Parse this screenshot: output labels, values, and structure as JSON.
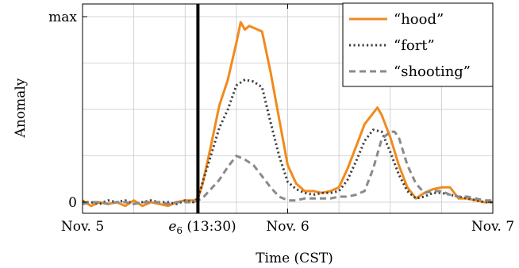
{
  "chart_data": {
    "type": "line",
    "xlabel": "Time (CST)",
    "ylabel": "Anomaly",
    "xlim": [
      0,
      48
    ],
    "ylim": [
      0,
      1
    ],
    "y_tick_labels": [
      "0",
      "max"
    ],
    "x_ticks": [
      {
        "x": 0,
        "label": "Nov. 5"
      },
      {
        "x": 24,
        "label": "Nov. 6"
      },
      {
        "x": 48,
        "label": "Nov. 7"
      }
    ],
    "event_marker": {
      "x": 13.5,
      "label_symbol": "e",
      "label_subscript": "6",
      "label_suffix": " (13:30)"
    },
    "grid": true,
    "legend_position": "top-right",
    "series": [
      {
        "name": "“hood”",
        "color": "#f28a1c",
        "style": "solid",
        "points": [
          [
            0,
            0.01
          ],
          [
            1,
            -0.02
          ],
          [
            2,
            0.0
          ],
          [
            3,
            -0.01
          ],
          [
            4,
            0.0
          ],
          [
            5,
            -0.02
          ],
          [
            6,
            0.01
          ],
          [
            7,
            -0.02
          ],
          [
            8,
            0.0
          ],
          [
            9,
            -0.01
          ],
          [
            10,
            -0.02
          ],
          [
            11,
            0.0
          ],
          [
            12,
            0.01
          ],
          [
            13,
            0.01
          ],
          [
            13.5,
            0.02
          ],
          [
            14,
            0.09
          ],
          [
            15,
            0.3
          ],
          [
            16,
            0.52
          ],
          [
            17,
            0.66
          ],
          [
            18,
            0.86
          ],
          [
            18.5,
            0.97
          ],
          [
            19,
            0.93
          ],
          [
            19.5,
            0.95
          ],
          [
            20,
            0.94
          ],
          [
            21,
            0.92
          ],
          [
            22,
            0.7
          ],
          [
            23,
            0.45
          ],
          [
            24,
            0.2
          ],
          [
            25,
            0.1
          ],
          [
            26,
            0.06
          ],
          [
            27,
            0.06
          ],
          [
            28,
            0.05
          ],
          [
            29,
            0.06
          ],
          [
            30,
            0.08
          ],
          [
            31,
            0.18
          ],
          [
            32,
            0.3
          ],
          [
            33,
            0.42
          ],
          [
            34,
            0.48
          ],
          [
            34.5,
            0.51
          ],
          [
            35,
            0.47
          ],
          [
            36,
            0.35
          ],
          [
            37,
            0.2
          ],
          [
            38,
            0.08
          ],
          [
            39,
            0.02
          ],
          [
            40,
            0.05
          ],
          [
            41,
            0.07
          ],
          [
            42,
            0.08
          ],
          [
            43,
            0.08
          ],
          [
            44,
            0.02
          ],
          [
            45,
            0.02
          ],
          [
            46,
            0.01
          ],
          [
            47,
            0.0
          ],
          [
            48,
            0.0
          ]
        ]
      },
      {
        "name": "“fort”",
        "color": "#404040",
        "style": "dotted",
        "points": [
          [
            0,
            0.0
          ],
          [
            1,
            0.0
          ],
          [
            2,
            -0.01
          ],
          [
            3,
            0.01
          ],
          [
            4,
            0.0
          ],
          [
            5,
            0.01
          ],
          [
            6,
            -0.01
          ],
          [
            7,
            0.0
          ],
          [
            8,
            0.01
          ],
          [
            9,
            0.0
          ],
          [
            10,
            0.0
          ],
          [
            11,
            -0.01
          ],
          [
            12,
            0.01
          ],
          [
            13,
            0.0
          ],
          [
            13.5,
            0.02
          ],
          [
            14,
            0.1
          ],
          [
            15,
            0.25
          ],
          [
            16,
            0.4
          ],
          [
            17,
            0.5
          ],
          [
            18,
            0.63
          ],
          [
            19,
            0.66
          ],
          [
            20,
            0.65
          ],
          [
            21,
            0.62
          ],
          [
            22,
            0.43
          ],
          [
            23,
            0.25
          ],
          [
            24,
            0.11
          ],
          [
            25,
            0.07
          ],
          [
            26,
            0.05
          ],
          [
            27,
            0.04
          ],
          [
            28,
            0.05
          ],
          [
            29,
            0.05
          ],
          [
            30,
            0.06
          ],
          [
            31,
            0.12
          ],
          [
            32,
            0.22
          ],
          [
            33,
            0.33
          ],
          [
            34,
            0.39
          ],
          [
            35,
            0.38
          ],
          [
            36,
            0.27
          ],
          [
            37,
            0.15
          ],
          [
            38,
            0.06
          ],
          [
            39,
            0.02
          ],
          [
            40,
            0.03
          ],
          [
            41,
            0.05
          ],
          [
            42,
            0.05
          ],
          [
            43,
            0.04
          ],
          [
            44,
            0.03
          ],
          [
            45,
            0.02
          ],
          [
            46,
            0.01
          ],
          [
            47,
            0.0
          ],
          [
            48,
            0.0
          ]
        ]
      },
      {
        "name": "“shooting”",
        "color": "#8a8a8a",
        "style": "dashed",
        "points": [
          [
            0,
            -0.01
          ],
          [
            1,
            0.0
          ],
          [
            2,
            0.0
          ],
          [
            3,
            -0.01
          ],
          [
            4,
            0.0
          ],
          [
            5,
            0.0
          ],
          [
            6,
            -0.01
          ],
          [
            7,
            0.0
          ],
          [
            8,
            0.0
          ],
          [
            9,
            0.0
          ],
          [
            10,
            -0.01
          ],
          [
            11,
            0.0
          ],
          [
            12,
            0.0
          ],
          [
            13,
            0.0
          ],
          [
            14,
            0.02
          ],
          [
            15,
            0.07
          ],
          [
            16,
            0.12
          ],
          [
            17,
            0.19
          ],
          [
            18,
            0.25
          ],
          [
            19,
            0.23
          ],
          [
            20,
            0.2
          ],
          [
            21,
            0.14
          ],
          [
            22,
            0.08
          ],
          [
            23,
            0.03
          ],
          [
            24,
            0.01
          ],
          [
            25,
            0.01
          ],
          [
            26,
            0.02
          ],
          [
            27,
            0.02
          ],
          [
            28,
            0.02
          ],
          [
            29,
            0.02
          ],
          [
            30,
            0.03
          ],
          [
            31,
            0.03
          ],
          [
            32,
            0.04
          ],
          [
            33,
            0.06
          ],
          [
            34,
            0.18
          ],
          [
            35,
            0.34
          ],
          [
            36,
            0.38
          ],
          [
            36.5,
            0.38
          ],
          [
            37,
            0.35
          ],
          [
            38,
            0.2
          ],
          [
            39,
            0.1
          ],
          [
            40,
            0.05
          ],
          [
            41,
            0.06
          ],
          [
            42,
            0.06
          ],
          [
            43,
            0.04
          ],
          [
            44,
            0.03
          ],
          [
            45,
            0.03
          ],
          [
            46,
            0.02
          ],
          [
            47,
            0.01
          ],
          [
            48,
            0.01
          ]
        ]
      }
    ]
  }
}
